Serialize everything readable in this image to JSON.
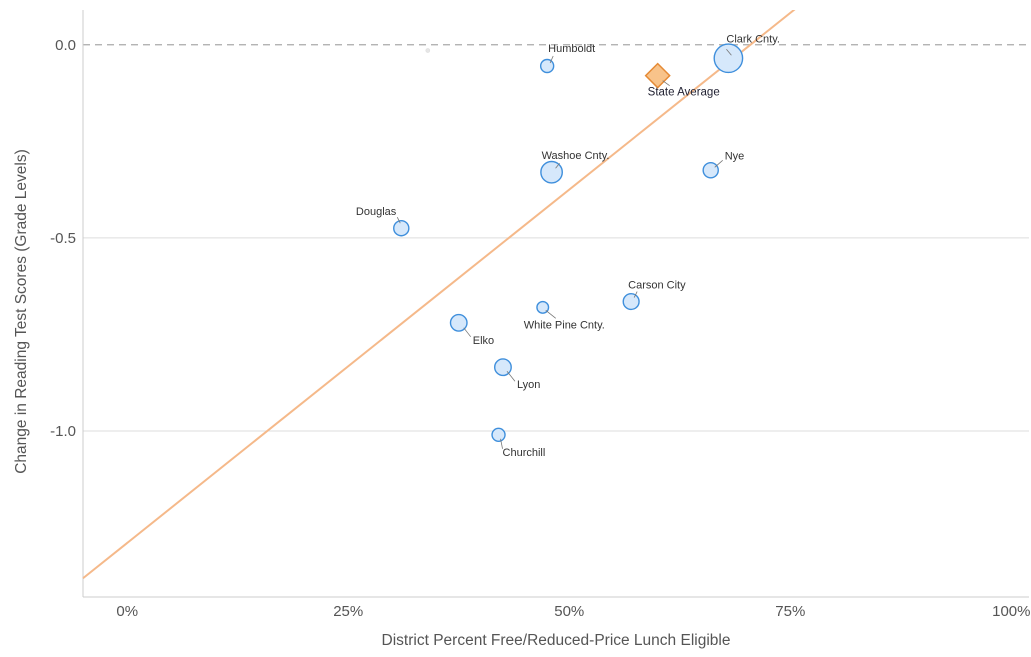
{
  "chart_data": {
    "type": "scatter",
    "xlabel": "District Percent Free/Reduced-Price Lunch Eligible",
    "ylabel": "Change in Reading Test Scores (Grade Levels)",
    "x_ticks": [
      {
        "value": 0,
        "label": "0%"
      },
      {
        "value": 25,
        "label": "25%"
      },
      {
        "value": 50,
        "label": "50%"
      },
      {
        "value": 75,
        "label": "75%"
      },
      {
        "value": 100,
        "label": "100%"
      }
    ],
    "y_ticks": [
      {
        "value": 0,
        "label": "0.0"
      },
      {
        "value": -0.5,
        "label": "-0.5"
      },
      {
        "value": -1.0,
        "label": "-1.0"
      }
    ],
    "xlim": [
      -5,
      102
    ],
    "ylim": [
      -1.43,
      0.09
    ],
    "reference_line_y": 0,
    "trend_line": {
      "slope": 0.0183,
      "intercept": -1.29,
      "color": "#f5b98a"
    },
    "colors": {
      "district_fill": "#d6e8fb",
      "district_stroke": "#3f8fdc",
      "state_fill": "#f8c38a",
      "state_stroke": "#e58a35",
      "gridline": "#dddddd",
      "zero_line": "#aaaaaa"
    },
    "points": [
      {
        "name": "Clark Cnty.",
        "x": 68,
        "y": -0.035,
        "size": 3.2
      },
      {
        "name": "Humboldt",
        "x": 47.5,
        "y": -0.055,
        "size": 1.0
      },
      {
        "name": "Washoe Cnty.",
        "x": 48,
        "y": -0.33,
        "size": 2.2
      },
      {
        "name": "Nye",
        "x": 66,
        "y": -0.325,
        "size": 1.3
      },
      {
        "name": "Douglas",
        "x": 31,
        "y": -0.475,
        "size": 1.3
      },
      {
        "name": "Carson City",
        "x": 57,
        "y": -0.665,
        "size": 1.4
      },
      {
        "name": "White Pine Cnty.",
        "x": 47,
        "y": -0.68,
        "size": 0.8
      },
      {
        "name": "Elko",
        "x": 37.5,
        "y": -0.72,
        "size": 1.5
      },
      {
        "name": "Lyon",
        "x": 42.5,
        "y": -0.835,
        "size": 1.5
      },
      {
        "name": "Churchill",
        "x": 42,
        "y": -1.01,
        "size": 1.0
      },
      {
        "name": "",
        "x": 34,
        "y": -0.015,
        "size": 0.5,
        "faint": true
      }
    ],
    "state_average": {
      "name": "State Average",
      "x": 60,
      "y": -0.08
    }
  }
}
